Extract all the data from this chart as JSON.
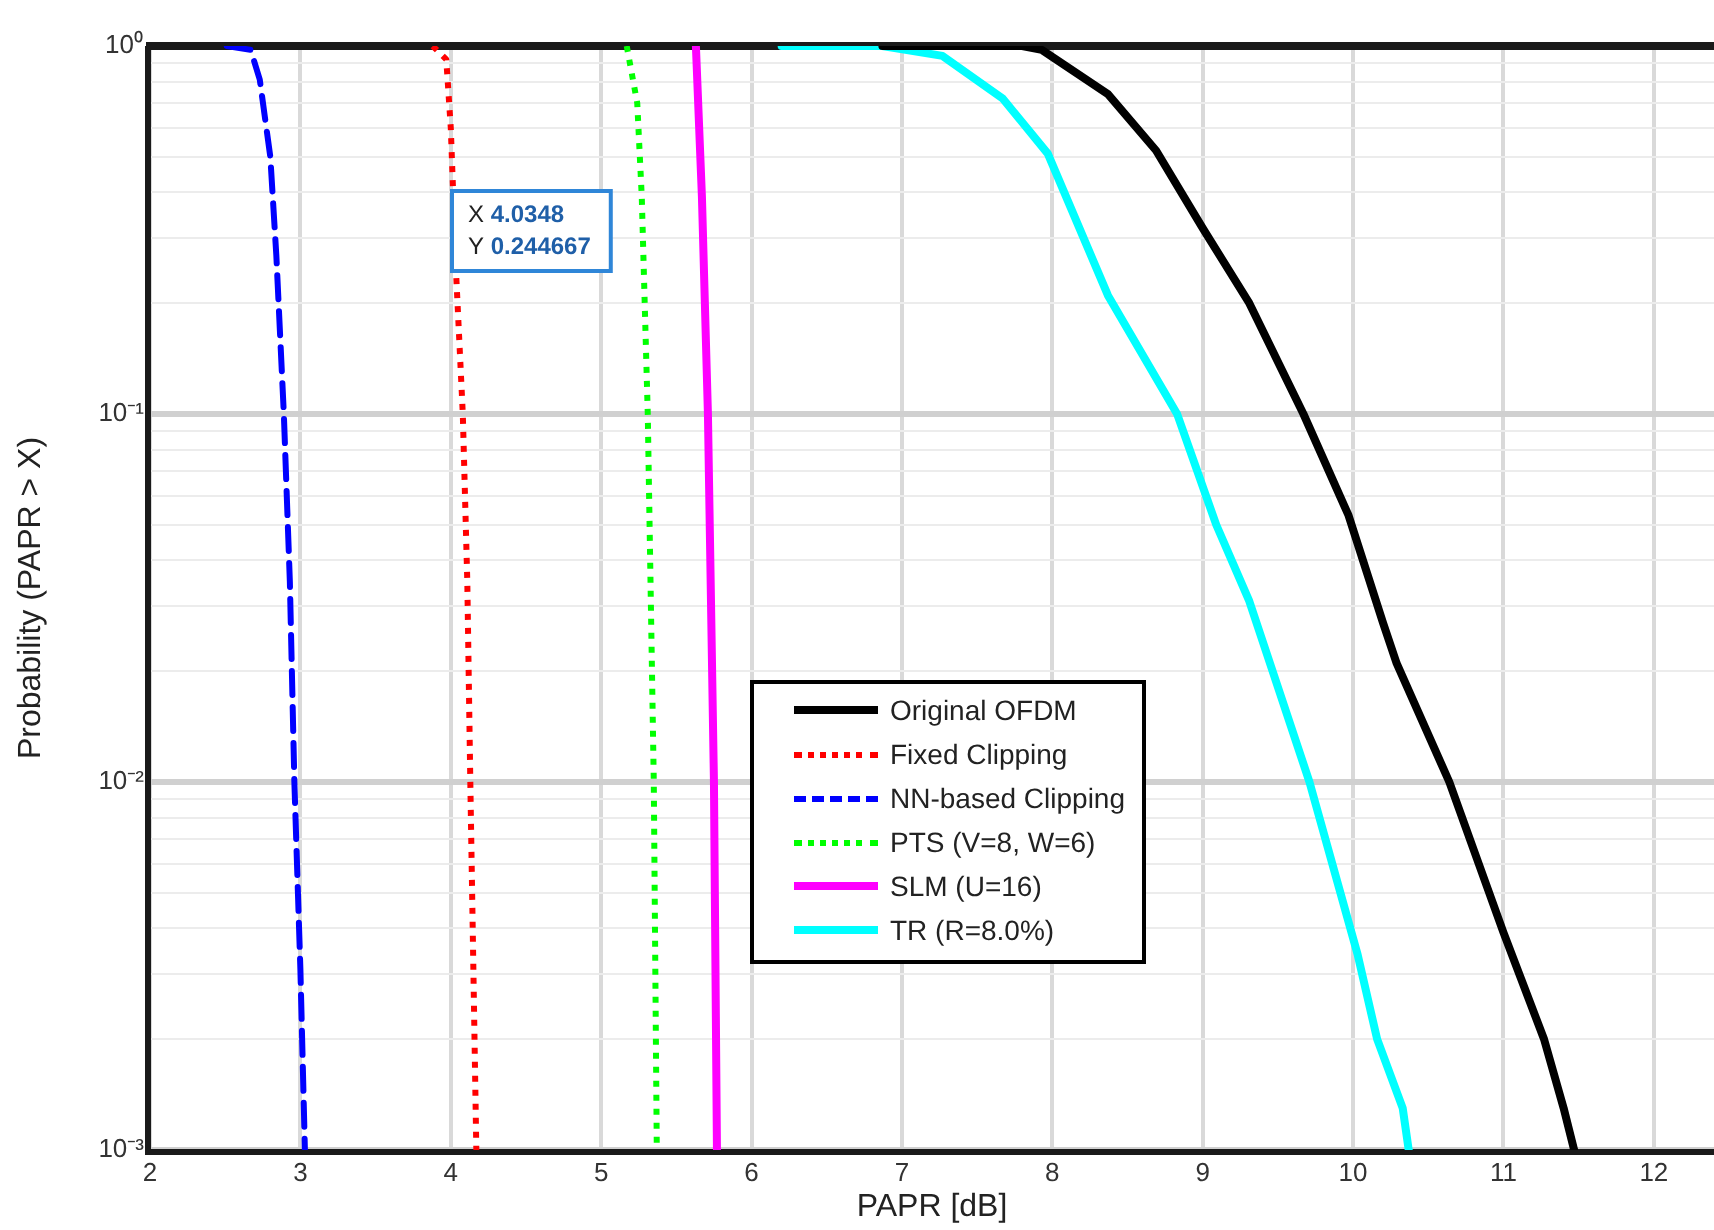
{
  "chart_data": {
    "type": "line",
    "xlabel": "PAPR [dB]",
    "ylabel": "Probability (PAPR > X)",
    "log": true,
    "grid": true,
    "legend": "center right",
    "xlim": [
      2,
      12.4
    ],
    "xticks": [
      2,
      3,
      4,
      5,
      6,
      7,
      8,
      9,
      10,
      11,
      12
    ],
    "ylim": [
      0.001,
      1
    ],
    "yticks": [
      {
        "value": 0.001,
        "label": "10⁻³"
      },
      {
        "value": 0.002,
        "label": null
      },
      {
        "value": 0.003,
        "label": null
      },
      {
        "value": 0.004,
        "label": null
      },
      {
        "value": 0.005,
        "label": null
      },
      {
        "value": 0.006,
        "label": null
      },
      {
        "value": 0.007,
        "label": null
      },
      {
        "value": 0.008,
        "label": null
      },
      {
        "value": 0.009,
        "label": null
      },
      {
        "value": 0.01,
        "label": "10⁻²"
      },
      {
        "value": 0.02,
        "label": null
      },
      {
        "value": 0.03,
        "label": null
      },
      {
        "value": 0.04,
        "label": null
      },
      {
        "value": 0.05,
        "label": null
      },
      {
        "value": 0.06,
        "label": null
      },
      {
        "value": 0.07,
        "label": null
      },
      {
        "value": 0.08,
        "label": null
      },
      {
        "value": 0.09,
        "label": null
      },
      {
        "value": 0.1,
        "label": "10⁻¹"
      },
      {
        "value": 0.2,
        "label": null
      },
      {
        "value": 0.3,
        "label": null
      },
      {
        "value": 0.4,
        "label": null
      },
      {
        "value": 0.5,
        "label": null
      },
      {
        "value": 0.6,
        "label": null
      },
      {
        "value": 0.7,
        "label": null
      },
      {
        "value": 0.8,
        "label": null
      },
      {
        "value": 0.9,
        "label": null
      },
      {
        "value": 1,
        "label": "10⁰"
      }
    ],
    "series": [
      {
        "name": "Original OFDM",
        "color": "#000000",
        "line_style": "solid",
        "x": [
          6.87,
          7.8,
          7.93,
          8.37,
          8.69,
          9.0,
          9.31,
          9.67,
          9.97,
          10.2,
          10.29,
          10.64,
          11.0,
          11.27,
          11.4,
          11.47
        ],
        "values": [
          1,
          1,
          0.976,
          0.74,
          0.52,
          0.32,
          0.2,
          0.1,
          0.053,
          0.027,
          0.021,
          0.01,
          0.0039,
          0.002,
          0.0013,
          0.001
        ]
      },
      {
        "name": "Fixed Clipping",
        "color": "#ff0000",
        "line_style": "dotted",
        "x": [
          3.88,
          3.97,
          4.0,
          4.0348,
          4.08,
          4.11,
          4.13,
          4.17
        ],
        "values": [
          1,
          0.92,
          0.6,
          0.244667,
          0.1,
          0.035,
          0.01,
          0.001
        ]
      },
      {
        "name": "NN-based Clipping",
        "color": "#0000ff",
        "line_style": "dashed",
        "x": [
          2.51,
          2.67,
          2.73,
          2.8,
          2.84,
          2.89,
          2.93,
          2.96,
          3.0,
          3.03
        ],
        "values": [
          1,
          0.976,
          0.81,
          0.5,
          0.27,
          0.1,
          0.035,
          0.01,
          0.0031,
          0.001
        ]
      },
      {
        "name": "PTS (V=8, W=6)",
        "color": "#00ff00",
        "line_style": "dotted",
        "x": [
          5.17,
          5.24,
          5.27,
          5.31,
          5.35,
          5.37
        ],
        "values": [
          1,
          0.7,
          0.39,
          0.1,
          0.01,
          0.001
        ]
      },
      {
        "name": "SLM (U=16)",
        "color": "#ff00ff",
        "line_style": "solid",
        "x": [
          5.63,
          5.67,
          5.71,
          5.75,
          5.77
        ],
        "values": [
          1,
          0.39,
          0.1,
          0.01,
          0.001
        ]
      },
      {
        "name": "TR (R=8.0%)",
        "color": "#00ffff",
        "line_style": "solid",
        "x": [
          6.2,
          6.87,
          7.27,
          7.67,
          7.97,
          8.37,
          8.83,
          9.09,
          9.31,
          9.71,
          10.03,
          10.16,
          10.33,
          10.37
        ],
        "values": [
          1,
          1,
          0.94,
          0.72,
          0.51,
          0.21,
          0.1,
          0.05,
          0.031,
          0.01,
          0.0034,
          0.002,
          0.0013,
          0.001
        ]
      }
    ],
    "annotations": [
      {
        "text": "X 4.0348\nY 0.244667",
        "x": 4.0348,
        "y": 0.244667
      }
    ]
  }
}
